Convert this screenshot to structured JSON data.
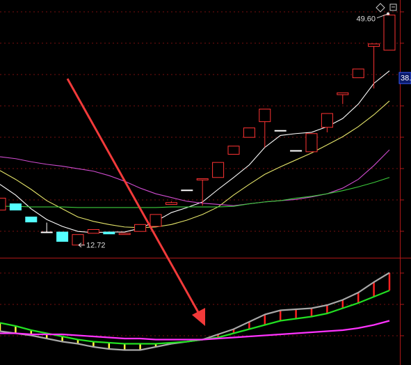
{
  "chart_data": {
    "type": "candlestick",
    "ylim": [
      10.7,
      51.8
    ],
    "up_color": "#ff3333",
    "down_color": "#54ffff",
    "flat_color": "#ffffff",
    "open": [
      18.3,
      19.3,
      17.2,
      14.8,
      14.8,
      12.72,
      14.6,
      14.8,
      14.4,
      14.9,
      15.7,
      19.2,
      21.5,
      23.1,
      23.5,
      27.2,
      29.9,
      32.4,
      31.0,
      27.8,
      27.6,
      31.5,
      36.7,
      39.4,
      44.4,
      43.8
    ],
    "high": [
      20.2,
      19.3,
      17.2,
      16.3,
      14.8,
      14.4,
      15.2,
      14.8,
      14.6,
      16.0,
      17.6,
      19.7,
      21.5,
      23.3,
      25.9,
      28.5,
      31.4,
      34.4,
      31.0,
      27.8,
      30.5,
      33.7,
      37.0,
      40.8,
      44.8,
      49.6
    ],
    "low": [
      18.3,
      18.3,
      16.4,
      14.8,
      13.3,
      12.72,
      14.6,
      14.5,
      14.4,
      14.9,
      15.7,
      19.2,
      21.5,
      19.0,
      23.5,
      27.2,
      29.9,
      28.3,
      31.0,
      27.8,
      27.6,
      30.7,
      35.2,
      39.4,
      37.7,
      43.8
    ],
    "close": [
      20.2,
      18.3,
      16.4,
      14.8,
      13.3,
      14.4,
      15.2,
      14.5,
      14.6,
      16.0,
      17.6,
      19.5,
      21.5,
      23.3,
      25.9,
      28.5,
      31.4,
      34.4,
      31.0,
      27.8,
      30.5,
      33.7,
      37.0,
      40.8,
      44.8,
      49.4
    ],
    "lines": [
      {
        "color": "#ffffff",
        "values": [
          22.4,
          20.7,
          18.5,
          16.8,
          15.7,
          14.9,
          14.7,
          14.8,
          14.8,
          15.4,
          16.5,
          17.9,
          18.7,
          19.6,
          21.6,
          23.5,
          25.5,
          28.3,
          30.2,
          30.5,
          30.7,
          31.6,
          32.9,
          35.2,
          38.5,
          40.5
        ]
      },
      {
        "color": "#e6e66a",
        "values": [
          24.6,
          23.2,
          21.6,
          19.8,
          18.5,
          17.2,
          16.5,
          16.0,
          15.6,
          15.5,
          15.6,
          16.0,
          16.7,
          17.6,
          18.8,
          20.7,
          22.4,
          24.0,
          25.2,
          26.3,
          27.4,
          28.7,
          30.0,
          31.6,
          33.5,
          35.7
        ]
      },
      {
        "color": "#d04cd0",
        "values": [
          26.8,
          26.5,
          26.0,
          25.6,
          25.3,
          24.9,
          24.5,
          23.8,
          22.9,
          21.8,
          20.9,
          20.3,
          19.7,
          19.4,
          19.2,
          19.0,
          19.3,
          19.6,
          19.8,
          20.0,
          20.4,
          20.9,
          21.8,
          23.2,
          25.4,
          27.9
        ]
      },
      {
        "color": "#3ccc3c",
        "values": [
          18.9,
          18.9,
          18.8,
          18.8,
          18.8,
          18.7,
          18.7,
          18.7,
          18.7,
          18.7,
          18.7,
          18.8,
          18.8,
          18.8,
          18.8,
          18.9,
          19.3,
          19.6,
          19.8,
          20.2,
          20.5,
          20.9,
          21.4,
          22.0,
          22.7,
          23.5
        ]
      }
    ],
    "annotations": [
      {
        "label": "49.60",
        "value": 49.6,
        "index": 25
      },
      {
        "label": "12.72",
        "value": 12.72,
        "index": 5
      }
    ],
    "price_tag": "38.",
    "indicator": {
      "ylim": [
        0,
        100
      ],
      "up_bar_color": "#ff2020",
      "down_bar_color": "#ffff40",
      "series": [
        {
          "color": "#a8a8a8",
          "values": [
            31,
            29,
            27,
            24,
            21,
            19,
            16,
            14,
            13,
            13,
            16,
            19,
            21,
            23,
            28,
            33,
            40,
            47,
            51,
            52,
            53,
            56,
            61,
            68,
            78,
            87
          ]
        },
        {
          "color": "#22e022",
          "values": [
            39,
            36,
            32,
            29,
            26,
            23,
            21,
            20,
            19,
            19,
            19,
            20,
            21,
            23,
            25,
            29,
            33,
            37,
            41,
            43,
            45,
            48,
            53,
            58,
            64,
            70
          ]
        },
        {
          "color": "#ff33ff",
          "values": [
            29,
            29,
            28,
            28,
            28,
            27,
            26,
            25,
            24,
            24,
            23,
            23,
            23,
            23,
            24,
            25,
            26,
            27,
            28,
            29,
            30,
            31,
            32,
            34,
            37,
            41
          ]
        }
      ]
    }
  }
}
